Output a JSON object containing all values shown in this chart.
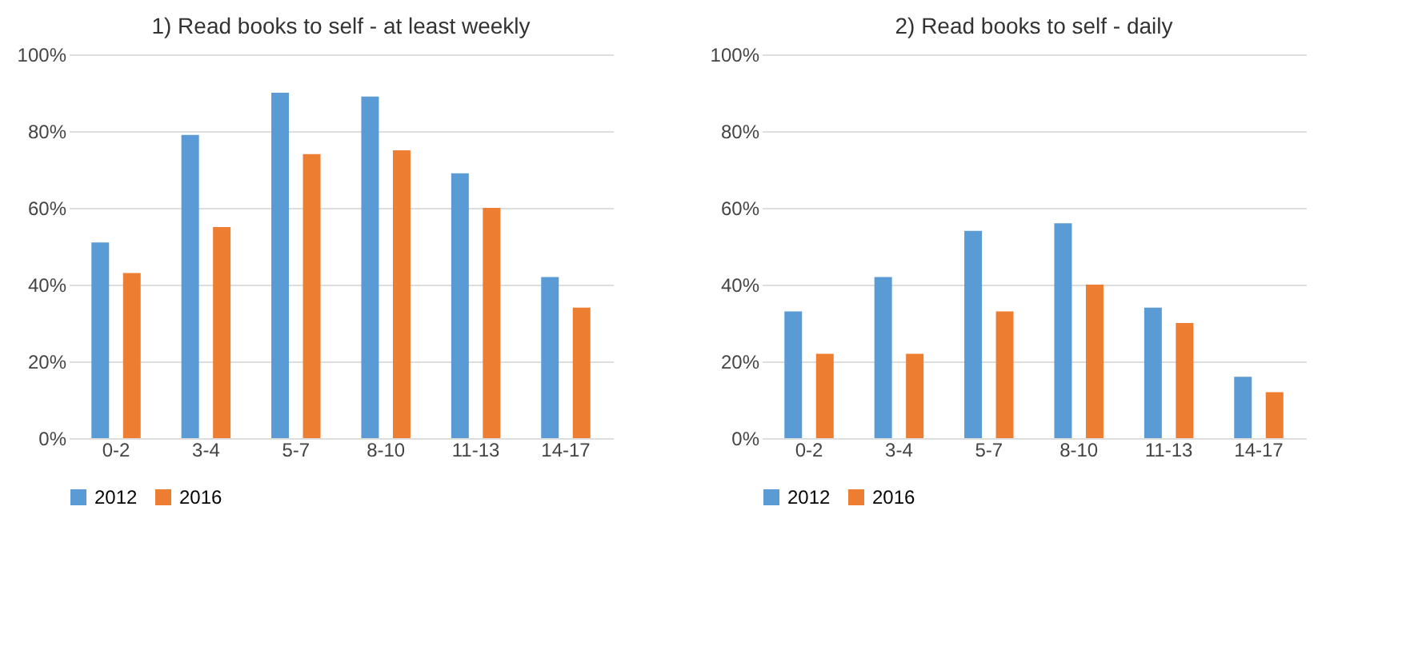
{
  "chart_data": [
    {
      "type": "bar",
      "title": "1) Read books to self - at least  weekly",
      "categories": [
        "0-2",
        "3-4",
        "5-7",
        "8-10",
        "11-13",
        "14-17"
      ],
      "series": [
        {
          "name": "2012",
          "color": "#5b9bd5",
          "values": [
            51,
            79,
            90,
            89,
            69,
            42
          ]
        },
        {
          "name": "2016",
          "color": "#ed7d31",
          "values": [
            43,
            55,
            74,
            75,
            60,
            34
          ]
        }
      ],
      "ylim": [
        0,
        100
      ],
      "yticks": [
        {
          "value": 0,
          "label": "0%"
        },
        {
          "value": 20,
          "label": "20%"
        },
        {
          "value": 40,
          "label": "40%"
        },
        {
          "value": 60,
          "label": "60%"
        },
        {
          "value": 80,
          "label": "80%"
        },
        {
          "value": 100,
          "label": "100%"
        }
      ],
      "grid": "y",
      "legend": "bottom"
    },
    {
      "type": "bar",
      "title": "2) Read books to self - daily",
      "categories": [
        "0-2",
        "3-4",
        "5-7",
        "8-10",
        "11-13",
        "14-17"
      ],
      "series": [
        {
          "name": "2012",
          "color": "#5b9bd5",
          "values": [
            33,
            42,
            54,
            56,
            34,
            16
          ]
        },
        {
          "name": "2016",
          "color": "#ed7d31",
          "values": [
            22,
            22,
            33,
            40,
            30,
            12
          ]
        }
      ],
      "ylim": [
        0,
        100
      ],
      "yticks": [
        {
          "value": 0,
          "label": "0%"
        },
        {
          "value": 20,
          "label": "20%"
        },
        {
          "value": 40,
          "label": "40%"
        },
        {
          "value": 60,
          "label": "60%"
        },
        {
          "value": 80,
          "label": "80%"
        },
        {
          "value": 100,
          "label": "100%"
        }
      ],
      "grid": "y",
      "legend": "bottom"
    }
  ]
}
